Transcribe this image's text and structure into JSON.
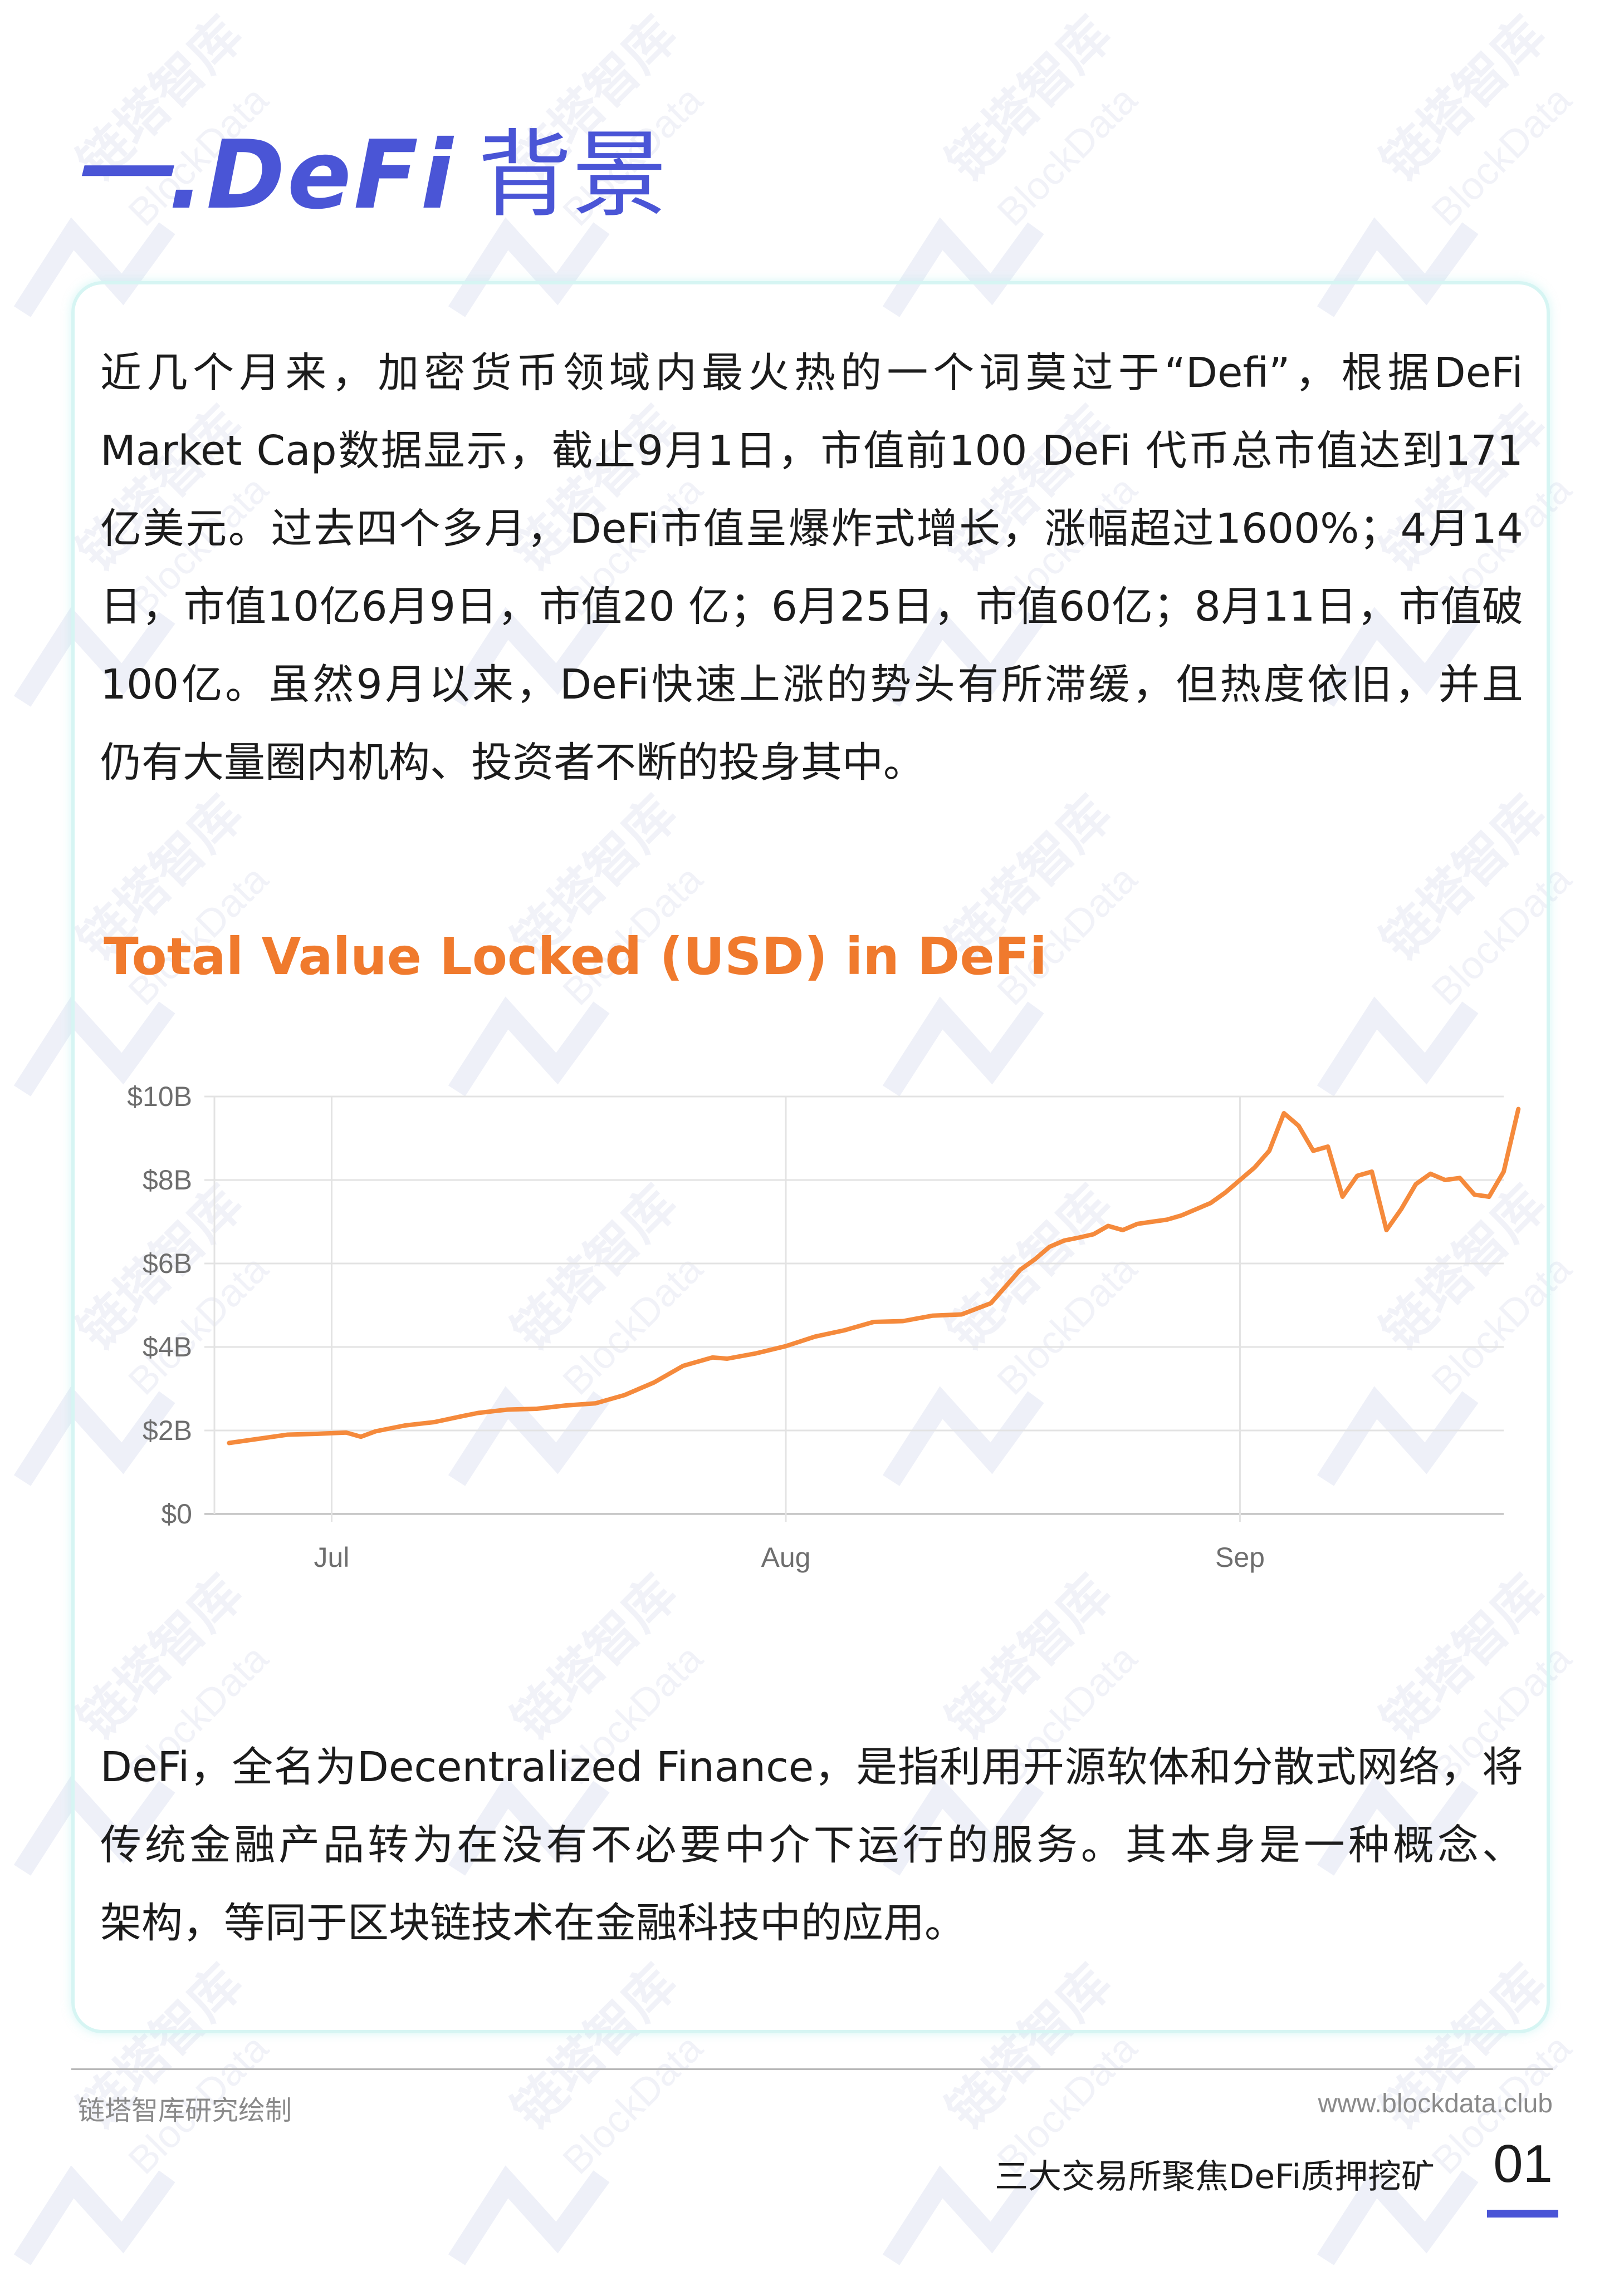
{
  "section": {
    "title": "一.DeFi",
    "title_suffix": "背景"
  },
  "intro_lines": [
    "近几个月来，加密货币领域内最火热的一个词莫过于“Defi”，根据DeFi",
    "Market Cap数据显示，截止9月1日，市值前100 DeFi 代币总市值达到171",
    "亿美元。过去四个多月，DeFi市值呈爆炸式增长，涨幅超过1600%；4月14",
    "日，市值10亿6月9日，市值20 亿；6月25日，市值60亿；8月11日，市值破",
    "100亿。虽然9月以来，DeFi快速上涨的势头有所滞缓，但热度依旧，并且",
    "仍有大量圈内机构、投资者不断的投身其中。"
  ],
  "definition_lines": [
    "DeFi，全名为Decentralized Finance，是指利用开源软体和分散式网络，将",
    "传统金融产品转为在没有不必要中介下运行的服务。其本身是一种概念、",
    "架构，等同于区块链技术在金融科技中的应用。"
  ],
  "chart_data": {
    "type": "line",
    "title": "Total Value Locked (USD) in DeFi",
    "xlabel": "",
    "ylabel": "",
    "x_range": [
      -8,
      80
    ],
    "ylim": [
      0,
      10
    ],
    "y_ticks": [
      {
        "value": 0,
        "label": "$0"
      },
      {
        "value": 2,
        "label": "$2B"
      },
      {
        "value": 4,
        "label": "$4B"
      },
      {
        "value": 6,
        "label": "$6B"
      },
      {
        "value": 8,
        "label": "$8B"
      },
      {
        "value": 10,
        "label": "$10B"
      }
    ],
    "x_ticks": [
      {
        "value": 0,
        "label": "Jul"
      },
      {
        "value": 31,
        "label": "Aug"
      },
      {
        "value": 62,
        "label": "Sep"
      }
    ],
    "grid": true,
    "color": "#f58a3c",
    "series": [
      {
        "x": [
          -7,
          -5,
          -3,
          -1,
          1,
          2,
          3,
          5,
          7,
          9,
          10,
          12,
          14,
          16,
          18,
          20,
          22,
          24,
          26,
          27,
          29,
          31,
          33,
          35,
          37,
          39,
          41,
          43,
          45,
          47,
          48,
          49,
          50,
          51,
          52,
          53,
          54,
          55,
          56,
          57,
          58,
          59,
          60,
          61,
          62,
          63,
          64,
          65,
          66,
          67,
          68,
          69,
          70,
          71,
          72,
          73,
          74,
          75,
          76,
          77,
          78,
          79
        ],
        "y": [
          1.7,
          1.8,
          1.9,
          1.92,
          1.95,
          1.85,
          1.98,
          2.12,
          2.2,
          2.35,
          2.42,
          2.5,
          2.52,
          2.6,
          2.65,
          2.85,
          3.15,
          3.55,
          3.75,
          3.72,
          3.85,
          4.02,
          4.25,
          4.4,
          4.6,
          4.62,
          4.75,
          4.78,
          5.05,
          5.85,
          6.1,
          6.4,
          6.55,
          6.62,
          6.7,
          6.9,
          6.8,
          6.95,
          7.0,
          7.05,
          7.15,
          7.3,
          7.45,
          7.7,
          8.0,
          8.3,
          8.7,
          9.6,
          9.3,
          8.7,
          8.8,
          7.6,
          8.1,
          8.2,
          6.8,
          7.3,
          7.9,
          8.15,
          8.0,
          8.05,
          7.65,
          7.6
        ],
        "tail_x": [
          80,
          81
        ],
        "tail_y": [
          8.2,
          9.7
        ]
      }
    ]
  },
  "footer": {
    "source": "链塔智库研究绘制",
    "website": "www.blockdata.club",
    "doc_title": "三大交易所聚焦DeFi质押挖矿",
    "page_number": "01"
  }
}
